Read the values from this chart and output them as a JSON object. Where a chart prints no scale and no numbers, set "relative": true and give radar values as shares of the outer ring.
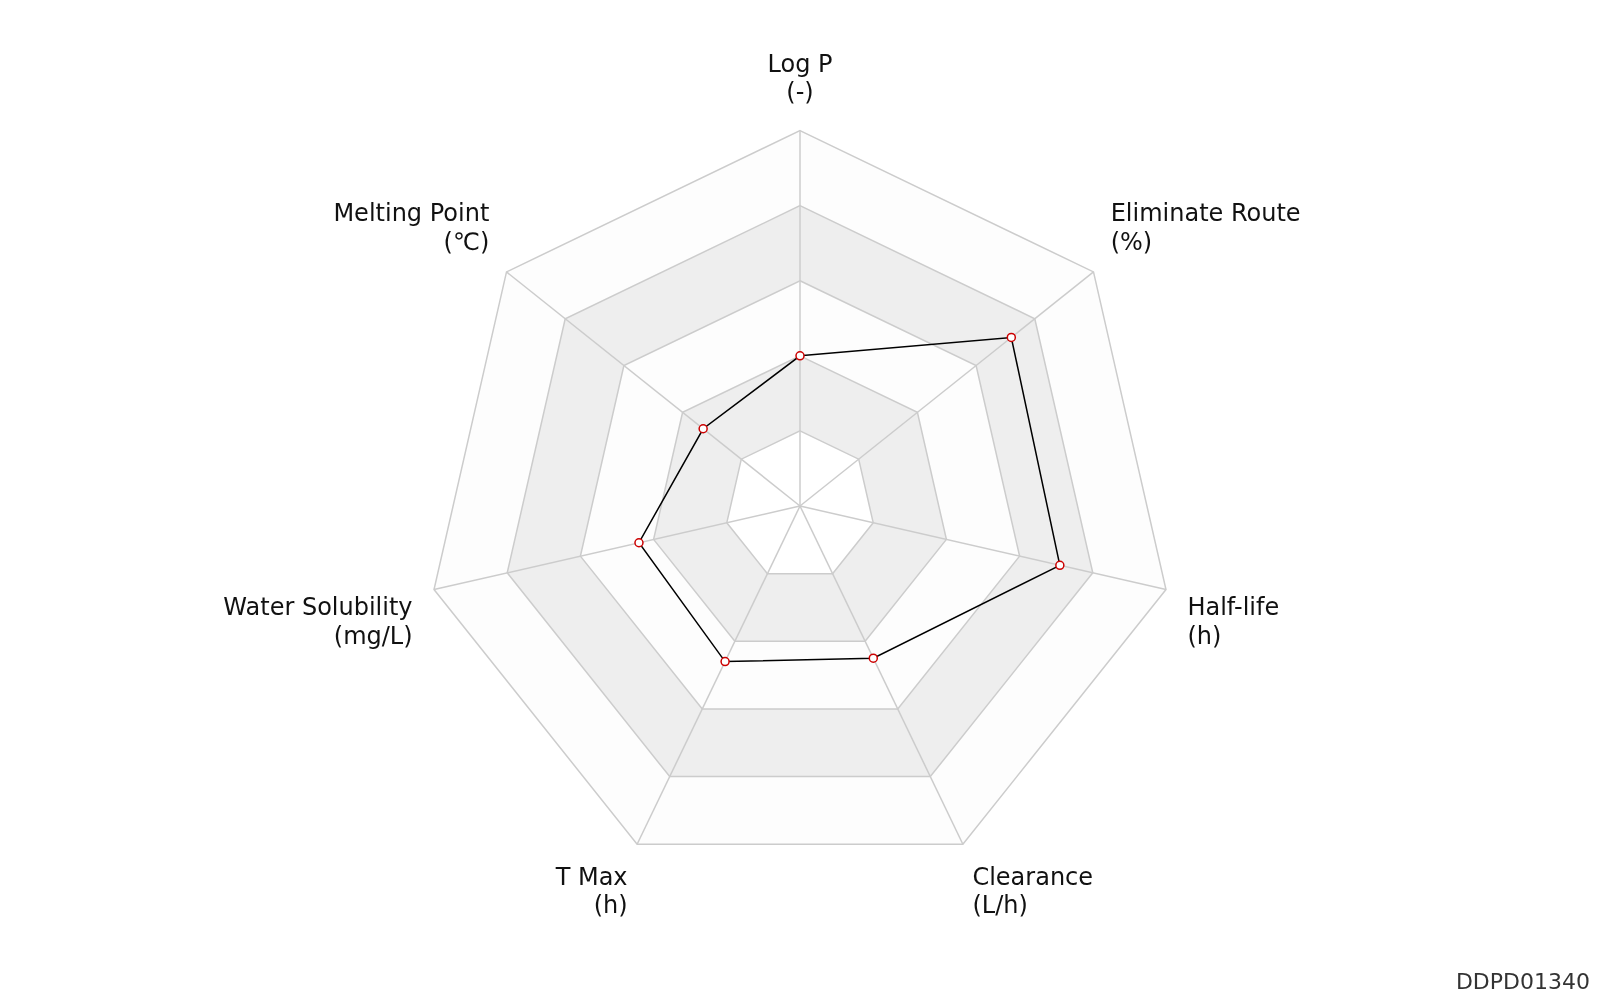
{
  "chart_data": {
    "type": "radar",
    "relative": true,
    "categories": [
      "Log P\n(-)",
      "Eliminate Route\n(%)",
      "Half-life\n(h)",
      "Clearance\n(L/h)",
      "T Max\n(h)",
      "Water Solubility\n(mg/L)",
      "Melting Point\n(℃)"
    ],
    "series": [
      {
        "color": "#000000",
        "values": [
          0.4,
          0.72,
          0.71,
          0.45,
          0.46,
          0.44,
          0.33
        ]
      }
    ],
    "marker": "circle",
    "legend": false,
    "annotations": [
      "DDPD01340"
    ]
  }
}
